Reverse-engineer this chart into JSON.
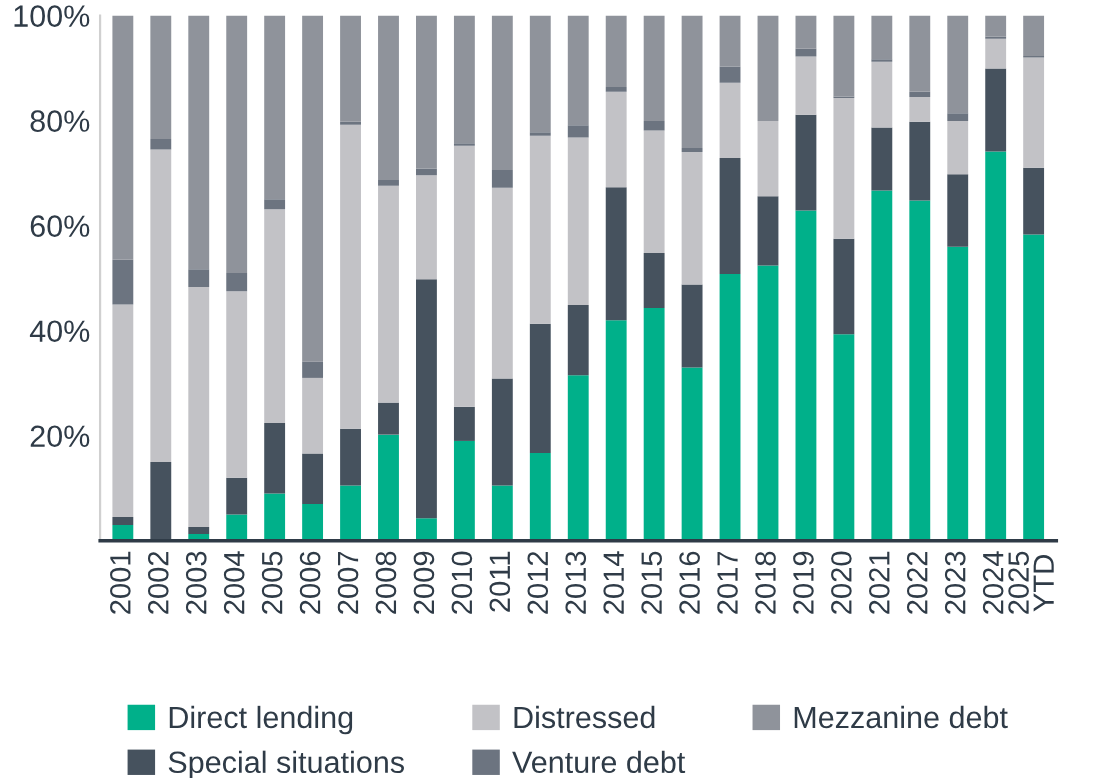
{
  "chart_data": {
    "type": "bar",
    "stacked": true,
    "categories": [
      "2001",
      "2002",
      "2003",
      "2004",
      "2005",
      "2006",
      "2007",
      "2008",
      "2009",
      "2010",
      "2011",
      "2012",
      "2013",
      "2014",
      "2015",
      "2016",
      "2017",
      "2018",
      "2019",
      "2020",
      "2021",
      "2022",
      "2023",
      "2024",
      "2025\nYTD"
    ],
    "series": [
      {
        "name": "Direct lending",
        "color": "#00b08a",
        "values": [
          3,
          0,
          1.3,
          5,
          9,
          7,
          10.5,
          20.2,
          4.3,
          19,
          10.5,
          16.7,
          31.5,
          42,
          44.3,
          33,
          50.8,
          52.4,
          62.9,
          39.3,
          66.7,
          64.8,
          56,
          74.1,
          58.3
        ]
      },
      {
        "name": "Special situations",
        "color": "#46525e",
        "values": [
          1.5,
          15,
          1.3,
          7,
          13.4,
          9.6,
          10.8,
          6.1,
          45.5,
          6.5,
          20.4,
          24.6,
          13.4,
          25.3,
          10.5,
          15.8,
          22.1,
          13.2,
          18.2,
          18.2,
          12,
          15,
          13.8,
          15.8,
          12.7
        ]
      },
      {
        "name": "Distressed",
        "color": "#c2c2c6",
        "values": [
          40.5,
          59.5,
          45.7,
          35.5,
          40.7,
          14.4,
          57.9,
          41.3,
          19.8,
          49.7,
          36.3,
          35.8,
          31.9,
          18.2,
          23.3,
          25.2,
          14.3,
          14.3,
          11.1,
          26.8,
          12.5,
          4.7,
          10.1,
          5.7,
          21
        ]
      },
      {
        "name": "Venture debt",
        "color": "#6c7480",
        "values": [
          8.5,
          2,
          3.4,
          3.5,
          1.9,
          3.1,
          0.6,
          1.1,
          1.3,
          0.5,
          3.4,
          0.7,
          2.3,
          0.9,
          1.8,
          0.8,
          3.1,
          0,
          1.5,
          0.3,
          0.5,
          1,
          1.5,
          0.4,
          0.3
        ]
      },
      {
        "name": "Mezzanine debt",
        "color": "#8f939b",
        "values": [
          46.5,
          23.5,
          48.3,
          49,
          35,
          65.9,
          20.2,
          31.3,
          29.1,
          24.3,
          29.4,
          22.2,
          20.9,
          13.6,
          20.1,
          25.2,
          9.7,
          20.1,
          6.3,
          15.4,
          8.3,
          14.5,
          18.6,
          4,
          7.7
        ]
      }
    ],
    "ylim": [
      0,
      100
    ],
    "yticks": [
      {
        "value": 20,
        "label": "20%"
      },
      {
        "value": 40,
        "label": "40%"
      },
      {
        "value": 60,
        "label": "60%"
      },
      {
        "value": 80,
        "label": "80%"
      },
      {
        "value": 100,
        "label": "100%"
      }
    ],
    "grid": false,
    "legend": "bottom"
  }
}
